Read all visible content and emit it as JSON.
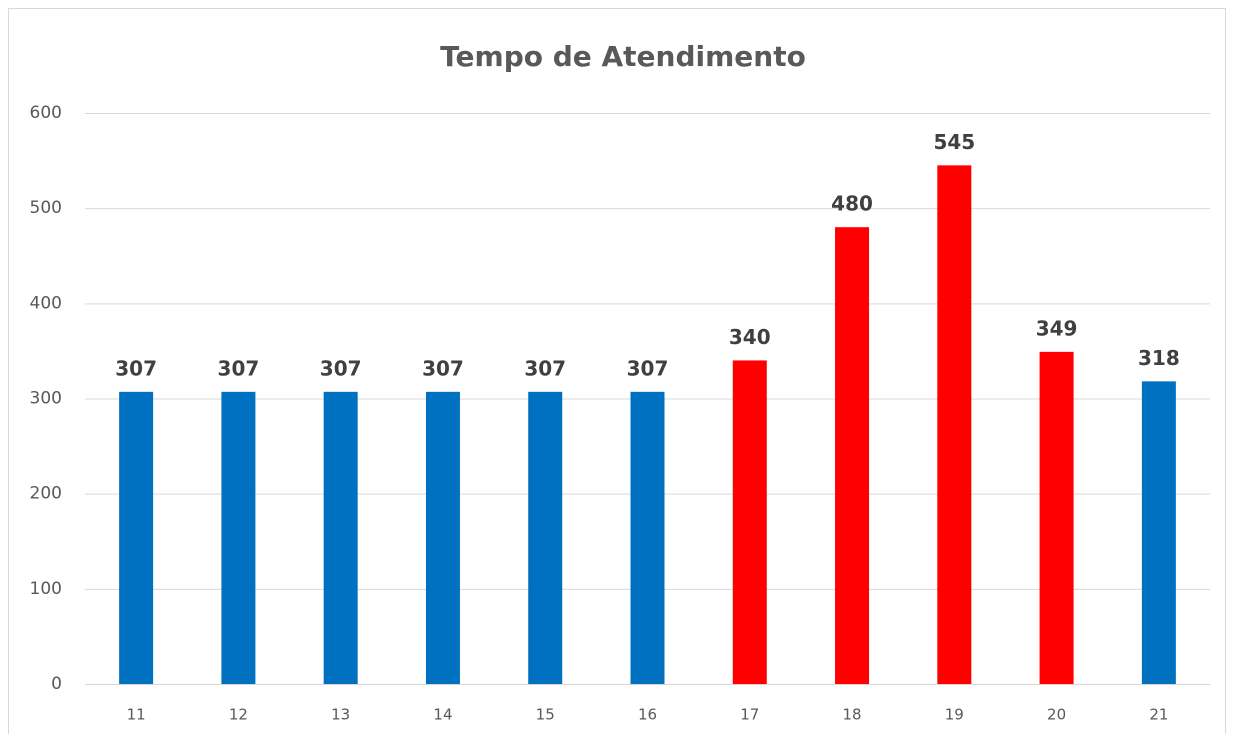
{
  "chart_data": {
    "type": "bar",
    "title": "Tempo de Atendimento",
    "categories": [
      "11",
      "12",
      "13",
      "14",
      "15",
      "16",
      "17",
      "18",
      "19",
      "20",
      "21"
    ],
    "values": [
      307,
      307,
      307,
      307,
      307,
      307,
      340,
      480,
      545,
      349,
      318
    ],
    "colors": [
      "#0070c0",
      "#0070c0",
      "#0070c0",
      "#0070c0",
      "#0070c0",
      "#0070c0",
      "#ff0000",
      "#ff0000",
      "#ff0000",
      "#ff0000",
      "#0070c0"
    ],
    "ylim": [
      0,
      600
    ],
    "yticks": [
      0,
      100,
      200,
      300,
      400,
      500,
      600
    ],
    "grid": true
  }
}
